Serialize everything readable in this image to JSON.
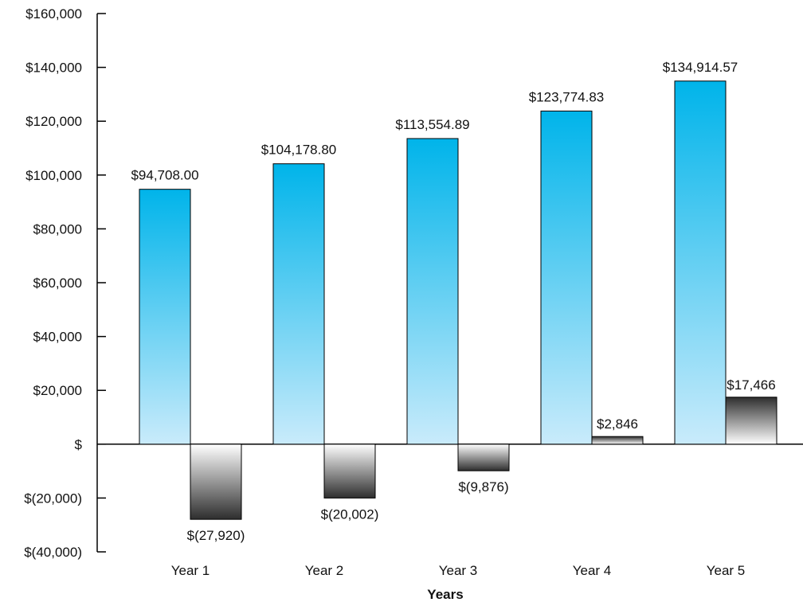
{
  "chart_data": {
    "type": "bar",
    "title": "",
    "xlabel": "Years",
    "ylabel": "",
    "categories": [
      "Year 1",
      "Year 2",
      "Year 3",
      "Year 4",
      "Year 5"
    ],
    "series": [
      {
        "values": [
          94708.0,
          104178.8,
          113554.89,
          123774.83,
          134914.57
        ],
        "labels": [
          "$94,708.00",
          "$104,178.80",
          "$113,554.89",
          "$123,774.83",
          "$134,914.57"
        ],
        "color_top": "#00b4ea",
        "color_bottom": "#c9ebfb"
      },
      {
        "values": [
          -27920,
          -20002,
          -9876,
          2846,
          17466
        ],
        "labels": [
          "$(27,920)",
          "$(20,002)",
          "$(9,876)",
          "$2,846",
          "$17,466"
        ],
        "color_dark": "#2e2e2e",
        "color_light": "#ffffff"
      }
    ],
    "ylim": [
      -40000,
      160000
    ],
    "yticks": [
      160000,
      140000,
      120000,
      100000,
      80000,
      60000,
      40000,
      20000,
      0,
      -20000,
      -40000
    ],
    "ytick_labels": [
      "$160,000",
      "$140,000",
      "$120,000",
      "$100,000",
      "$80,000",
      "$60,000",
      "$40,000",
      "$20,000",
      "$",
      "$(20,000)",
      "$(40,000)"
    ],
    "grid": false,
    "legend": "none"
  }
}
